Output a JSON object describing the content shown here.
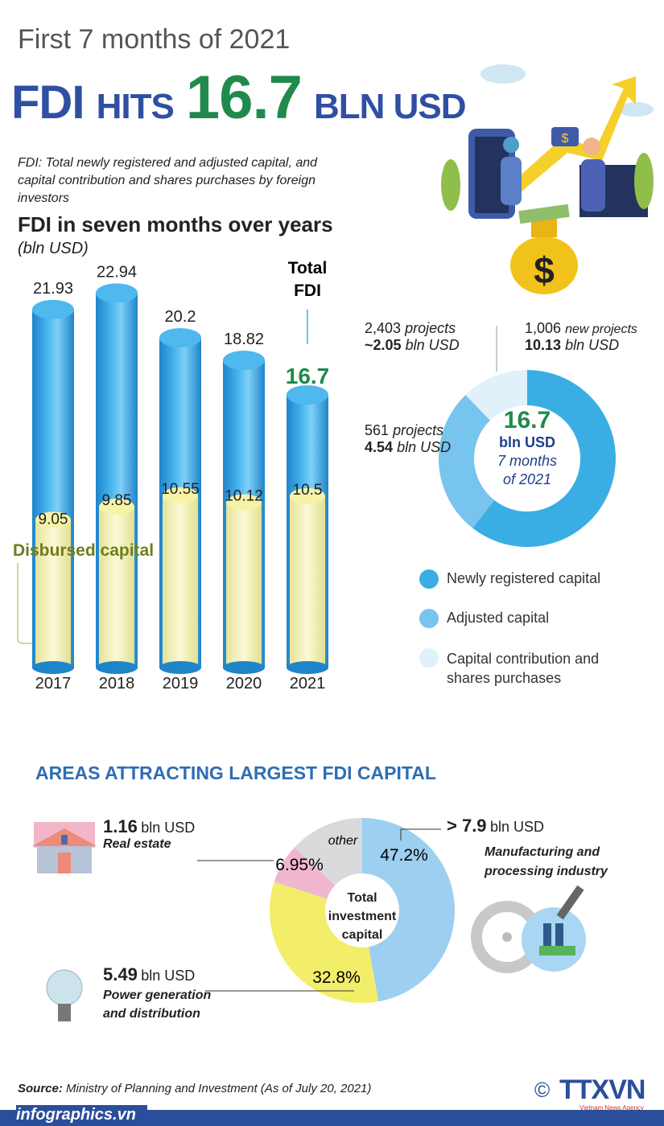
{
  "header": {
    "subtitle": "First 7 months of 2021",
    "title_a": "FDI",
    "title_b": "HITS",
    "title_c": "16.7",
    "title_d": "BLN USD",
    "note": "FDI: Total newly registered and adjusted capital, and capital contribution and shares purchases by foreign investors"
  },
  "chart_data": [
    {
      "type": "bar",
      "title": "FDI in seven months over years",
      "unit": "(bln USD)",
      "categories": [
        "2017",
        "2018",
        "2019",
        "2020",
        "2021"
      ],
      "series": [
        {
          "name": "Total FDI",
          "values": [
            21.93,
            22.94,
            20.2,
            18.82,
            16.7
          ],
          "color": "#2e9fe0"
        },
        {
          "name": "Disbursed capital",
          "values": [
            9.05,
            9.85,
            10.55,
            10.12,
            10.5
          ],
          "color": "#f6f4b8"
        }
      ],
      "total_label_l1": "Total",
      "total_label_l2": "FDI",
      "disbursed_label": "Disbursed capital",
      "value_labels_total": [
        "21.93",
        "22.94",
        "20.2",
        "18.82",
        "16.7"
      ],
      "value_labels_disbursed": [
        "9.05",
        "9.85",
        "10.55",
        "10.12",
        "10.5"
      ]
    },
    {
      "type": "pie",
      "variant": "donut",
      "center": {
        "value": "16.7",
        "unit": "bln USD",
        "l1": "7 months",
        "l2": "of 2021"
      },
      "slices": [
        {
          "name": "Newly registered capital",
          "value": 10.13,
          "color": "#3aaee4",
          "projects": "1,006",
          "projects_word": "new projects",
          "amount": "10.13",
          "amount_unit": "bln USD"
        },
        {
          "name": "Adjusted capital",
          "value": 4.54,
          "color": "#77c4ee",
          "projects": "561",
          "projects_word": "projects",
          "amount": "4.54",
          "amount_unit": "bln USD"
        },
        {
          "name": "Capital contribution and shares purchases",
          "value": 2.05,
          "color": "#e0f1f9",
          "projects": "2,403",
          "projects_word": "projects",
          "amount": "~2.05",
          "amount_unit": "bln USD"
        }
      ],
      "legend": [
        "Newly registered capital",
        "Adjusted capital",
        "Capital contribution and",
        "shares purchases"
      ],
      "legend_placement": "bottom"
    },
    {
      "type": "pie",
      "variant": "donut",
      "title": "AREAS ATTRACTING LARGEST FDI CAPITAL",
      "center_l1": "Total",
      "center_l2": "investment",
      "center_l3": "capital",
      "slices": [
        {
          "name": "Manufacturing and processing industry",
          "value": 47.2,
          "label": "47.2%",
          "color": "#9ccff0",
          "amount": "> 7.9",
          "unit": "bln USD",
          "l1": "Manufacturing and",
          "l2": "processing industry"
        },
        {
          "name": "Power generation and distribution",
          "value": 32.8,
          "label": "32.8%",
          "color": "#f2ee6a",
          "amount": "5.49",
          "unit": "bln USD",
          "l1": "Power generation",
          "l2": "and distribution"
        },
        {
          "name": "Real estate",
          "value": 6.95,
          "label": "6.95%",
          "color": "#f1b6cf",
          "amount": "1.16",
          "unit": "bln USD",
          "l1": "Real estate"
        },
        {
          "name": "other",
          "value": 13.05,
          "label": "other",
          "color": "#d9dadc"
        }
      ]
    }
  ],
  "footer": {
    "source_label": "Source:",
    "source": "Ministry of Planning and Investment (As of July 20, 2021)",
    "site": "infographics.vn",
    "logo": "TTXVN",
    "logo_sub": "Vietnam News Agency",
    "copyright": "©"
  }
}
